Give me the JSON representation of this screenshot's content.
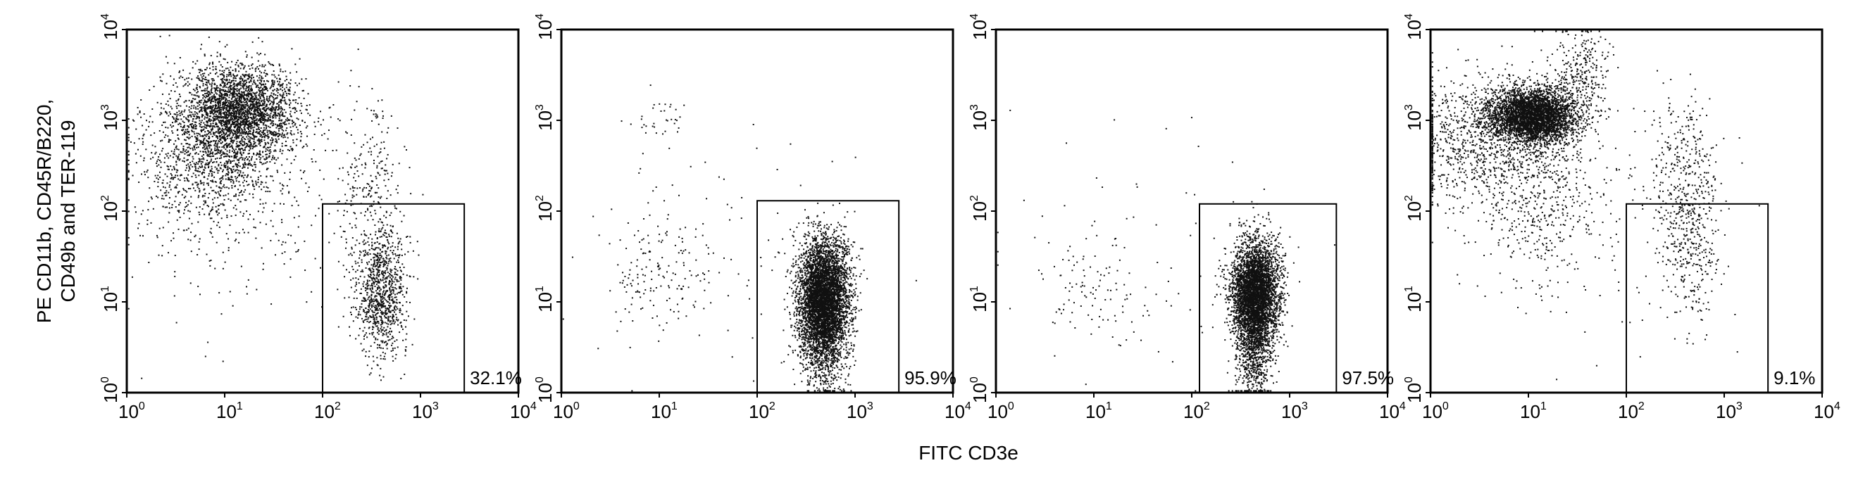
{
  "chart_data": {
    "type": "scatter",
    "xlabel": "FITC CD3e",
    "ylabel_lines": [
      "PE CD11b, CD45R/B220,",
      "CD49b and TER-119"
    ],
    "x_scale": "log",
    "y_scale": "log",
    "xlim": [
      1,
      10000
    ],
    "ylim": [
      1,
      10000
    ],
    "x_tick_labels": [
      {
        "base": "10",
        "exp": "0"
      },
      {
        "base": "10",
        "exp": "1"
      },
      {
        "base": "10",
        "exp": "2"
      },
      {
        "base": "10",
        "exp": "3"
      },
      {
        "base": "10",
        "exp": "4"
      }
    ],
    "y_tick_labels": [
      {
        "base": "10",
        "exp": "0"
      },
      {
        "base": "10",
        "exp": "1"
      },
      {
        "base": "10",
        "exp": "2"
      },
      {
        "base": "10",
        "exp": "3"
      },
      {
        "base": "10",
        "exp": "4"
      }
    ],
    "point_color": "#111111",
    "panels": [
      {
        "gate": {
          "x": [
            100,
            2800
          ],
          "y": [
            1,
            120
          ],
          "label": "32.1%"
        },
        "clusters": [
          {
            "n": 2600,
            "cx_log": 1.17,
            "cy_log": 3.1,
            "sx": 0.28,
            "sy": 0.26
          },
          {
            "n": 1200,
            "cx_log": 0.85,
            "cy_log": 2.6,
            "sx": 0.4,
            "sy": 0.4
          },
          {
            "n": 950,
            "cx_log": 2.6,
            "cy_log": 1.1,
            "sx": 0.13,
            "sy": 0.35
          },
          {
            "n": 260,
            "cx_log": 2.5,
            "cy_log": 2.3,
            "sx": 0.17,
            "sy": 0.55
          },
          {
            "n": 180,
            "cx_log": 1.2,
            "cy_log": 1.8,
            "sx": 0.65,
            "sy": 0.55
          }
        ]
      },
      {
        "gate": {
          "x": [
            100,
            2800
          ],
          "y": [
            1,
            130
          ],
          "label": "95.9%"
        },
        "clusters": [
          {
            "n": 4600,
            "cx_log": 2.68,
            "cy_log": 1.05,
            "sx": 0.13,
            "sy": 0.32
          },
          {
            "n": 700,
            "cx_log": 2.68,
            "cy_log": 0.55,
            "sx": 0.12,
            "sy": 0.3
          },
          {
            "n": 160,
            "cx_log": 1.0,
            "cy_log": 1.3,
            "sx": 0.28,
            "sy": 0.32
          },
          {
            "n": 35,
            "cx_log": 1.05,
            "cy_log": 3.0,
            "sx": 0.15,
            "sy": 0.12
          },
          {
            "n": 70,
            "cx_log": 1.7,
            "cy_log": 1.6,
            "sx": 0.7,
            "sy": 0.7
          }
        ]
      },
      {
        "gate": {
          "x": [
            120,
            3000
          ],
          "y": [
            1,
            120
          ],
          "label": "97.5%"
        },
        "clusters": [
          {
            "n": 3800,
            "cx_log": 2.65,
            "cy_log": 1.1,
            "sx": 0.12,
            "sy": 0.28
          },
          {
            "n": 900,
            "cx_log": 2.65,
            "cy_log": 0.55,
            "sx": 0.1,
            "sy": 0.3
          },
          {
            "n": 110,
            "cx_log": 1.0,
            "cy_log": 1.15,
            "sx": 0.3,
            "sy": 0.35
          },
          {
            "n": 50,
            "cx_log": 1.6,
            "cy_log": 1.6,
            "sx": 0.8,
            "sy": 0.8
          }
        ]
      },
      {
        "gate": {
          "x": [
            100,
            2800
          ],
          "y": [
            1,
            120
          ],
          "label": "9.1%"
        },
        "clusters": [
          {
            "n": 3800,
            "cx_log": 1.05,
            "cy_log": 3.05,
            "sx": 0.22,
            "sy": 0.15
          },
          {
            "n": 1000,
            "cx_log": 0.55,
            "cy_log": 2.8,
            "sx": 0.45,
            "sy": 0.35
          },
          {
            "n": 500,
            "cx_log": 1.1,
            "cy_log": 2.2,
            "sx": 0.35,
            "sy": 0.5
          },
          {
            "n": 260,
            "cx_log": 1.55,
            "cy_log": 3.55,
            "sx": 0.15,
            "sy": 0.25
          },
          {
            "n": 420,
            "cx_log": 2.65,
            "cy_log": 1.7,
            "sx": 0.16,
            "sy": 0.45
          },
          {
            "n": 200,
            "cx_log": 2.55,
            "cy_log": 2.6,
            "sx": 0.2,
            "sy": 0.4
          },
          {
            "n": 90,
            "cx_log": 1.8,
            "cy_log": 1.8,
            "sx": 0.7,
            "sy": 0.7
          }
        ]
      }
    ]
  }
}
